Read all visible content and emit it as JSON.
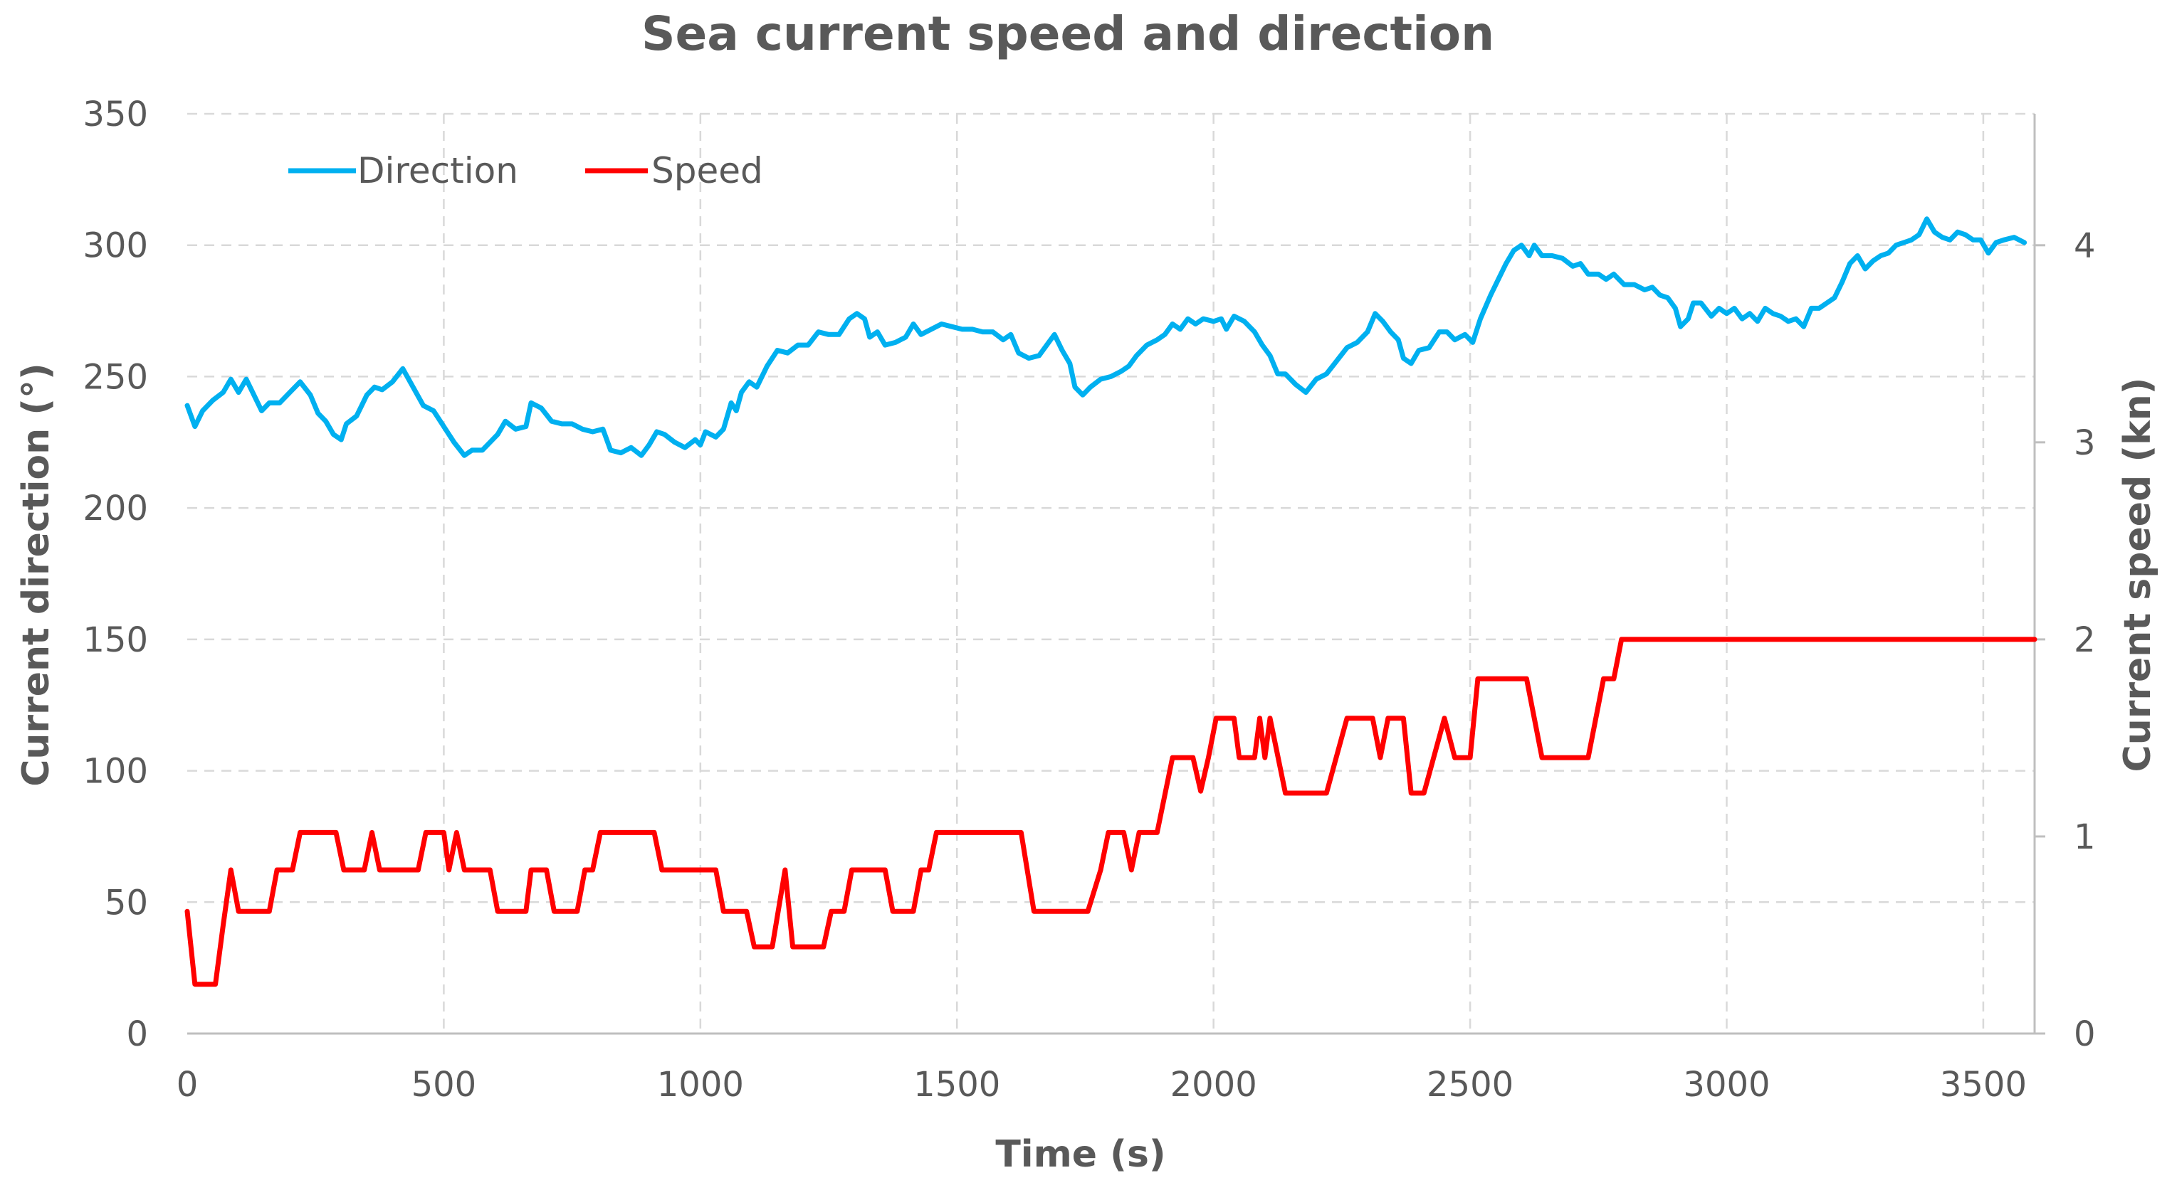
{
  "chart_data": {
    "type": "line",
    "title": "Sea current speed and direction",
    "xlabel": "Time (s)",
    "ylabel_left": "Current direction (°)",
    "ylabel_right": "Current speed (kn)",
    "xlim": [
      0,
      3600
    ],
    "ylim_left": [
      0,
      350
    ],
    "ylim_right": [
      0,
      4.667
    ],
    "x_ticks": [
      0,
      500,
      1000,
      1500,
      2000,
      2500,
      3000,
      3500
    ],
    "y_ticks_left": [
      0,
      50,
      100,
      150,
      200,
      250,
      300,
      350
    ],
    "y_ticks_right": [
      0,
      1,
      2,
      3,
      4
    ],
    "grid": true,
    "grid_style": "dashed",
    "legend_position": "top-left",
    "series": [
      {
        "name": "Direction",
        "axis": "left",
        "color": "#00b0f0",
        "points": [
          [
            0,
            239
          ],
          [
            15,
            231
          ],
          [
            30,
            237
          ],
          [
            50,
            241
          ],
          [
            70,
            244
          ],
          [
            85,
            249
          ],
          [
            100,
            244
          ],
          [
            115,
            249
          ],
          [
            130,
            243
          ],
          [
            145,
            237
          ],
          [
            160,
            240
          ],
          [
            180,
            240
          ],
          [
            200,
            244
          ],
          [
            220,
            248
          ],
          [
            240,
            243
          ],
          [
            255,
            236
          ],
          [
            270,
            233
          ],
          [
            285,
            228
          ],
          [
            300,
            226
          ],
          [
            310,
            232
          ],
          [
            330,
            235
          ],
          [
            350,
            243
          ],
          [
            365,
            246
          ],
          [
            380,
            245
          ],
          [
            400,
            248
          ],
          [
            420,
            253
          ],
          [
            440,
            246
          ],
          [
            460,
            239
          ],
          [
            480,
            237
          ],
          [
            500,
            231
          ],
          [
            520,
            225
          ],
          [
            540,
            220
          ],
          [
            555,
            222
          ],
          [
            575,
            222
          ],
          [
            590,
            225
          ],
          [
            605,
            228
          ],
          [
            620,
            233
          ],
          [
            640,
            230
          ],
          [
            660,
            231
          ],
          [
            670,
            240
          ],
          [
            690,
            238
          ],
          [
            710,
            233
          ],
          [
            730,
            232
          ],
          [
            750,
            232
          ],
          [
            770,
            230
          ],
          [
            790,
            229
          ],
          [
            810,
            230
          ],
          [
            825,
            222
          ],
          [
            845,
            221
          ],
          [
            865,
            223
          ],
          [
            885,
            220
          ],
          [
            900,
            224
          ],
          [
            915,
            229
          ],
          [
            930,
            228
          ],
          [
            950,
            225
          ],
          [
            970,
            223
          ],
          [
            990,
            226
          ],
          [
            1000,
            224
          ],
          [
            1010,
            229
          ],
          [
            1030,
            227
          ],
          [
            1045,
            230
          ],
          [
            1060,
            240
          ],
          [
            1070,
            237
          ],
          [
            1080,
            244
          ],
          [
            1095,
            248
          ],
          [
            1110,
            246
          ],
          [
            1130,
            254
          ],
          [
            1150,
            260
          ],
          [
            1170,
            259
          ],
          [
            1190,
            262
          ],
          [
            1210,
            262
          ],
          [
            1230,
            267
          ],
          [
            1250,
            266
          ],
          [
            1270,
            266
          ],
          [
            1290,
            272
          ],
          [
            1305,
            274
          ],
          [
            1320,
            272
          ],
          [
            1330,
            265
          ],
          [
            1345,
            267
          ],
          [
            1360,
            262
          ],
          [
            1380,
            263
          ],
          [
            1400,
            265
          ],
          [
            1415,
            270
          ],
          [
            1430,
            266
          ],
          [
            1450,
            268
          ],
          [
            1470,
            270
          ],
          [
            1490,
            269
          ],
          [
            1510,
            268
          ],
          [
            1530,
            268
          ],
          [
            1550,
            267
          ],
          [
            1570,
            267
          ],
          [
            1590,
            264
          ],
          [
            1605,
            266
          ],
          [
            1620,
            259
          ],
          [
            1640,
            257
          ],
          [
            1660,
            258
          ],
          [
            1675,
            262
          ],
          [
            1690,
            266
          ],
          [
            1705,
            260
          ],
          [
            1720,
            255
          ],
          [
            1730,
            246
          ],
          [
            1745,
            243
          ],
          [
            1760,
            246
          ],
          [
            1780,
            249
          ],
          [
            1800,
            250
          ],
          [
            1820,
            252
          ],
          [
            1835,
            254
          ],
          [
            1850,
            258
          ],
          [
            1870,
            262
          ],
          [
            1890,
            264
          ],
          [
            1905,
            266
          ],
          [
            1920,
            270
          ],
          [
            1935,
            268
          ],
          [
            1950,
            272
          ],
          [
            1965,
            270
          ],
          [
            1980,
            272
          ],
          [
            2000,
            271
          ],
          [
            2015,
            272
          ],
          [
            2025,
            268
          ],
          [
            2040,
            273
          ],
          [
            2060,
            271
          ],
          [
            2080,
            267
          ],
          [
            2095,
            262
          ],
          [
            2110,
            258
          ],
          [
            2125,
            251
          ],
          [
            2140,
            251
          ],
          [
            2160,
            247
          ],
          [
            2180,
            244
          ],
          [
            2200,
            249
          ],
          [
            2220,
            251
          ],
          [
            2240,
            256
          ],
          [
            2260,
            261
          ],
          [
            2280,
            263
          ],
          [
            2300,
            267
          ],
          [
            2315,
            274
          ],
          [
            2330,
            271
          ],
          [
            2345,
            267
          ],
          [
            2360,
            264
          ],
          [
            2370,
            257
          ],
          [
            2385,
            255
          ],
          [
            2400,
            260
          ],
          [
            2420,
            261
          ],
          [
            2440,
            267
          ],
          [
            2455,
            267
          ],
          [
            2470,
            264
          ],
          [
            2490,
            266
          ],
          [
            2505,
            263
          ],
          [
            2520,
            272
          ],
          [
            2540,
            281
          ],
          [
            2555,
            287
          ],
          [
            2570,
            293
          ],
          [
            2585,
            298
          ],
          [
            2600,
            300
          ],
          [
            2615,
            296
          ],
          [
            2625,
            300
          ],
          [
            2640,
            296
          ],
          [
            2660,
            296
          ],
          [
            2680,
            295
          ],
          [
            2700,
            292
          ],
          [
            2715,
            293
          ],
          [
            2730,
            289
          ],
          [
            2750,
            289
          ],
          [
            2765,
            287
          ],
          [
            2780,
            289
          ],
          [
            2800,
            285
          ],
          [
            2820,
            285
          ],
          [
            2840,
            283
          ],
          [
            2855,
            284
          ],
          [
            2870,
            281
          ],
          [
            2885,
            280
          ],
          [
            2900,
            276
          ],
          [
            2910,
            269
          ],
          [
            2925,
            272
          ],
          [
            2935,
            278
          ],
          [
            2950,
            278
          ],
          [
            2970,
            273
          ],
          [
            2985,
            276
          ],
          [
            3000,
            274
          ],
          [
            3015,
            276
          ],
          [
            3030,
            272
          ],
          [
            3045,
            274
          ],
          [
            3060,
            271
          ],
          [
            3075,
            276
          ],
          [
            3090,
            274
          ],
          [
            3105,
            273
          ],
          [
            3120,
            271
          ],
          [
            3135,
            272
          ],
          [
            3150,
            269
          ],
          [
            3165,
            276
          ],
          [
            3180,
            276
          ],
          [
            3195,
            278
          ],
          [
            3210,
            280
          ],
          [
            3225,
            286
          ],
          [
            3240,
            293
          ],
          [
            3255,
            296
          ],
          [
            3270,
            291
          ],
          [
            3285,
            294
          ],
          [
            3300,
            296
          ],
          [
            3315,
            297
          ],
          [
            3330,
            300
          ],
          [
            3345,
            301
          ],
          [
            3360,
            302
          ],
          [
            3375,
            304
          ],
          [
            3390,
            310
          ],
          [
            3405,
            305
          ],
          [
            3420,
            303
          ],
          [
            3435,
            302
          ],
          [
            3450,
            305
          ],
          [
            3465,
            304
          ],
          [
            3480,
            302
          ],
          [
            3495,
            302
          ],
          [
            3510,
            297
          ],
          [
            3525,
            301
          ],
          [
            3540,
            302
          ],
          [
            3560,
            303
          ],
          [
            3580,
            301
          ]
        ]
      },
      {
        "name": "Speed",
        "axis": "right",
        "color": "#ff0000",
        "points": [
          [
            0,
            0.62
          ],
          [
            15,
            0.25
          ],
          [
            55,
            0.25
          ],
          [
            70,
            0.55
          ],
          [
            85,
            0.83
          ],
          [
            100,
            0.62
          ],
          [
            150,
            0.62
          ],
          [
            160,
            0.62
          ],
          [
            175,
            0.83
          ],
          [
            205,
            0.83
          ],
          [
            220,
            1.02
          ],
          [
            290,
            1.02
          ],
          [
            305,
            0.83
          ],
          [
            345,
            0.83
          ],
          [
            360,
            1.02
          ],
          [
            375,
            0.83
          ],
          [
            450,
            0.83
          ],
          [
            465,
            1.02
          ],
          [
            500,
            1.02
          ],
          [
            510,
            0.83
          ],
          [
            525,
            1.02
          ],
          [
            540,
            0.83
          ],
          [
            590,
            0.83
          ],
          [
            605,
            0.62
          ],
          [
            660,
            0.62
          ],
          [
            670,
            0.83
          ],
          [
            700,
            0.83
          ],
          [
            715,
            0.62
          ],
          [
            760,
            0.62
          ],
          [
            775,
            0.83
          ],
          [
            790,
            0.83
          ],
          [
            805,
            1.02
          ],
          [
            910,
            1.02
          ],
          [
            925,
            0.83
          ],
          [
            1030,
            0.83
          ],
          [
            1045,
            0.62
          ],
          [
            1090,
            0.62
          ],
          [
            1105,
            0.44
          ],
          [
            1140,
            0.44
          ],
          [
            1165,
            0.83
          ],
          [
            1180,
            0.44
          ],
          [
            1240,
            0.44
          ],
          [
            1255,
            0.62
          ],
          [
            1280,
            0.62
          ],
          [
            1295,
            0.83
          ],
          [
            1360,
            0.83
          ],
          [
            1375,
            0.62
          ],
          [
            1415,
            0.62
          ],
          [
            1430,
            0.83
          ],
          [
            1445,
            0.83
          ],
          [
            1460,
            1.02
          ],
          [
            1625,
            1.02
          ],
          [
            1650,
            0.62
          ],
          [
            1740,
            0.62
          ],
          [
            1755,
            0.62
          ],
          [
            1780,
            0.83
          ],
          [
            1795,
            1.02
          ],
          [
            1825,
            1.02
          ],
          [
            1840,
            0.83
          ],
          [
            1855,
            1.02
          ],
          [
            1890,
            1.02
          ],
          [
            1920,
            1.4
          ],
          [
            1960,
            1.4
          ],
          [
            1975,
            1.23
          ],
          [
            1990,
            1.4
          ],
          [
            2005,
            1.6
          ],
          [
            2040,
            1.6
          ],
          [
            2050,
            1.4
          ],
          [
            2080,
            1.4
          ],
          [
            2090,
            1.6
          ],
          [
            2100,
            1.4
          ],
          [
            2110,
            1.6
          ],
          [
            2140,
            1.22
          ],
          [
            2220,
            1.22
          ],
          [
            2260,
            1.6
          ],
          [
            2310,
            1.6
          ],
          [
            2325,
            1.4
          ],
          [
            2340,
            1.6
          ],
          [
            2370,
            1.6
          ],
          [
            2385,
            1.22
          ],
          [
            2410,
            1.22
          ],
          [
            2450,
            1.6
          ],
          [
            2470,
            1.4
          ],
          [
            2500,
            1.4
          ],
          [
            2515,
            1.8
          ],
          [
            2610,
            1.8
          ],
          [
            2640,
            1.4
          ],
          [
            2730,
            1.4
          ],
          [
            2760,
            1.8
          ],
          [
            2780,
            1.8
          ],
          [
            2795,
            2.0
          ],
          [
            3600,
            2.0
          ]
        ]
      }
    ]
  }
}
